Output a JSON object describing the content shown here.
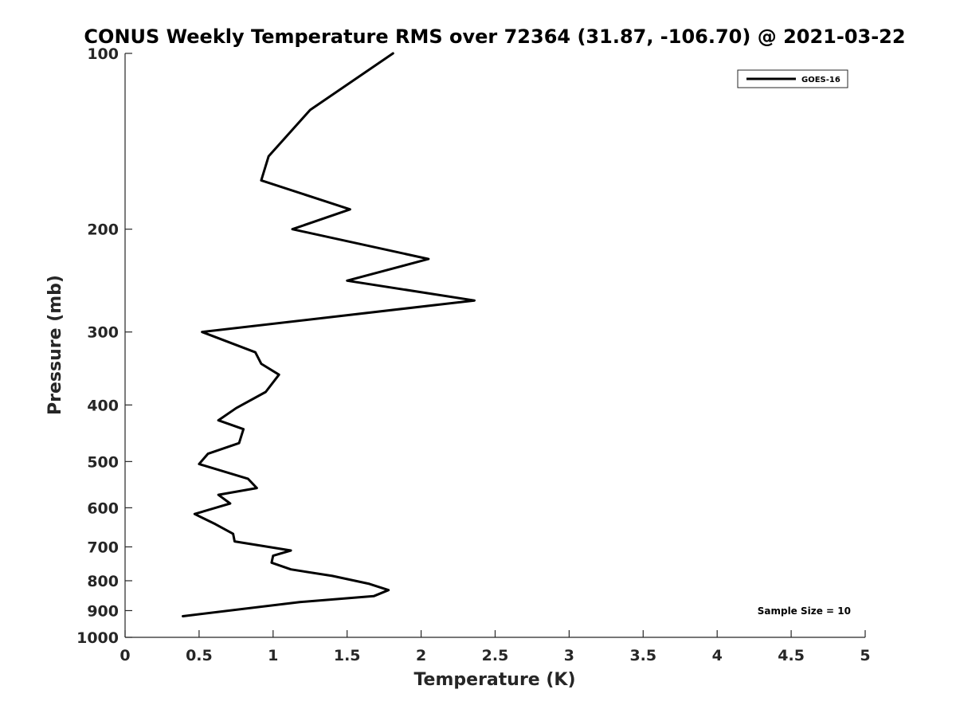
{
  "chart_data": {
    "type": "line",
    "title": "CONUS Weekly Temperature RMS over 72364 (31.87, -106.70) @ 2021-03-22",
    "xlabel": "Temperature (K)",
    "ylabel": "Pressure (mb)",
    "xlim": [
      0,
      5
    ],
    "ylim": [
      100,
      1000
    ],
    "y_scale": "log",
    "y_reversed": true,
    "x_ticks": [
      "0",
      "0.5",
      "1",
      "1.5",
      "2",
      "2.5",
      "3",
      "3.5",
      "4",
      "4.5",
      "5"
    ],
    "y_ticks": [
      "100",
      "200",
      "300",
      "400",
      "500",
      "600",
      "700",
      "800",
      "900",
      "1000"
    ],
    "grid": false,
    "legend_position": "top-right",
    "annotation": "Sample Size = 10",
    "series": [
      {
        "name": "GOES-16",
        "color": "#000000",
        "x": [
          1.81,
          1.25,
          0.97,
          0.92,
          1.52,
          1.13,
          2.05,
          1.5,
          2.36,
          0.52,
          0.88,
          0.92,
          1.04,
          0.95,
          0.75,
          0.63,
          0.8,
          0.77,
          0.56,
          0.5,
          0.83,
          0.89,
          0.63,
          0.71,
          0.47,
          0.61,
          0.73,
          0.74,
          1.12,
          1.0,
          0.99,
          1.12,
          1.4,
          1.65,
          1.78,
          1.68,
          1.18,
          0.39
        ],
        "y": [
          100,
          125,
          150,
          165,
          185,
          200,
          225,
          245,
          265,
          300,
          325,
          340,
          355,
          380,
          405,
          425,
          440,
          465,
          485,
          505,
          535,
          555,
          570,
          590,
          615,
          640,
          665,
          685,
          710,
          725,
          745,
          765,
          785,
          810,
          830,
          850,
          870,
          920
        ]
      }
    ]
  }
}
